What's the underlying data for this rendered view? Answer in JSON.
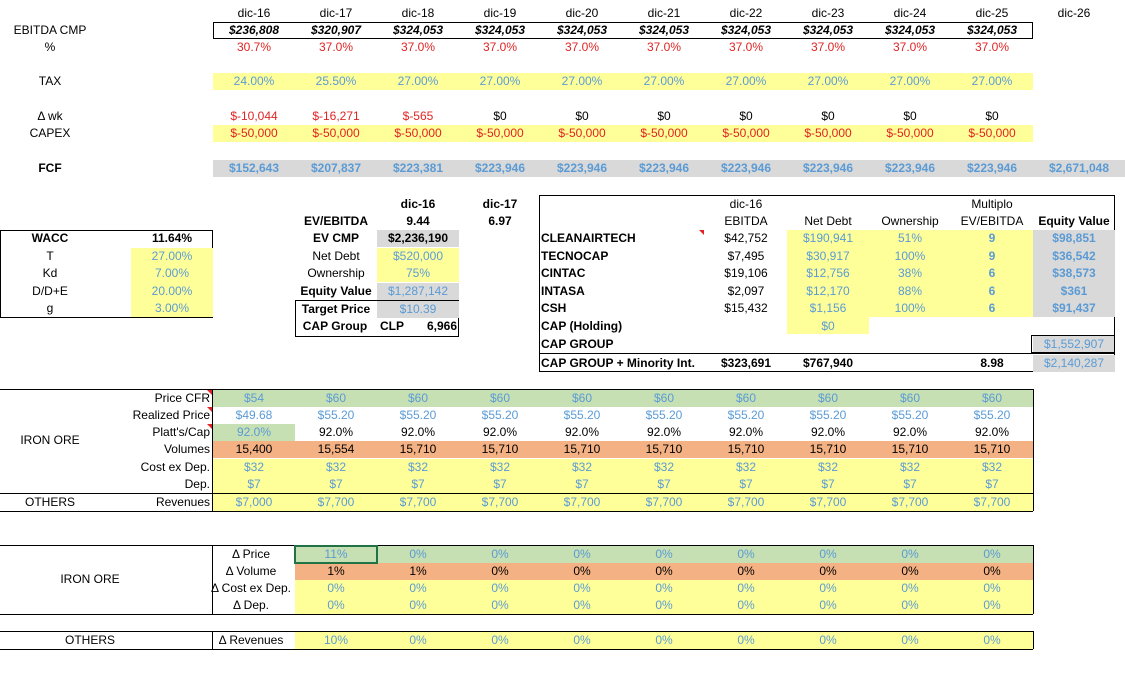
{
  "years": [
    "dic-16",
    "dic-17",
    "dic-18",
    "dic-19",
    "dic-20",
    "dic-21",
    "dic-22",
    "dic-23",
    "dic-24",
    "dic-25",
    "dic-26"
  ],
  "ebitda": {
    "label": "EBITDA CMP",
    "values": [
      "$236,808",
      "$320,907",
      "$324,053",
      "$324,053",
      "$324,053",
      "$324,053",
      "$324,053",
      "$324,053",
      "$324,053",
      "$324,053"
    ]
  },
  "margin": {
    "label": "%",
    "values": [
      "30.7%",
      "37.0%",
      "37.0%",
      "37.0%",
      "37.0%",
      "37.0%",
      "37.0%",
      "37.0%",
      "37.0%",
      "37.0%"
    ]
  },
  "tax": {
    "label": "TAX",
    "values": [
      "24.00%",
      "25.50%",
      "27.00%",
      "27.00%",
      "27.00%",
      "27.00%",
      "27.00%",
      "27.00%",
      "27.00%",
      "27.00%"
    ]
  },
  "wk": {
    "label": "Δ wk",
    "values": [
      "$-10,044",
      "$-16,271",
      "$-565",
      "$0",
      "$0",
      "$0",
      "$0",
      "$0",
      "$0",
      "$0"
    ]
  },
  "capex": {
    "label": "CAPEX",
    "values": [
      "$-50,000",
      "$-50,000",
      "$-50,000",
      "$-50,000",
      "$-50,000",
      "$-50,000",
      "$-50,000",
      "$-50,000",
      "$-50,000",
      "$-50,000"
    ]
  },
  "fcf": {
    "label": "FCF",
    "values": [
      "$152,643",
      "$207,837",
      "$223,381",
      "$223,946",
      "$223,946",
      "$223,946",
      "$223,946",
      "$223,946",
      "$223,946",
      "$223,946",
      "$2,671,048"
    ]
  },
  "wacc": {
    "rows": [
      {
        "label": "WACC",
        "value": "11.64%"
      },
      {
        "label": "T",
        "value": "27.00%"
      },
      {
        "label": "Kd",
        "value": "7.00%"
      },
      {
        "label": "D/D+E",
        "value": "20.00%"
      },
      {
        "label": "g",
        "value": "3.00%"
      }
    ]
  },
  "valuation": {
    "col1": "dic-16",
    "col2": "dic-17",
    "ev_ebitda": {
      "label": "EV/EBITDA",
      "v1": "9.44",
      "v2": "6.97"
    },
    "ev_cmp": {
      "label": "EV CMP",
      "value": "$2,236,190"
    },
    "net_debt": {
      "label": "Net Debt",
      "value": "$520,000"
    },
    "ownership": {
      "label": "Ownership",
      "value": "75%"
    },
    "equity": {
      "label": "Equity Value",
      "value": "$1,287,142"
    },
    "target": {
      "label": "Target Price",
      "value": "$10.39"
    },
    "cap_group": {
      "label": "CAP Group",
      "currency": "CLP",
      "value": "6,966"
    }
  },
  "subs": {
    "head_year": "dic-16",
    "head_multiplo": "Multiplo",
    "headers": [
      "EBITDA",
      "Net Debt",
      "Ownership",
      "EV/EBITDA",
      "Equity Value"
    ],
    "rows": [
      {
        "name": "CLEANAIRTECH",
        "ebitda": "$42,752",
        "debt": "$190,941",
        "own": "51%",
        "mult": "9",
        "eq": "$98,851"
      },
      {
        "name": "TECNOCAP",
        "ebitda": "$7,495",
        "debt": "$30,917",
        "own": "100%",
        "mult": "9",
        "eq": "$36,542"
      },
      {
        "name": "CINTAC",
        "ebitda": "$19,106",
        "debt": "$12,756",
        "own": "38%",
        "mult": "6",
        "eq": "$38,573"
      },
      {
        "name": "INTASA",
        "ebitda": "$2,097",
        "debt": "$12,170",
        "own": "88%",
        "mult": "6",
        "eq": "$361"
      },
      {
        "name": "CSH",
        "ebitda": "$15,432",
        "debt": "$1,156",
        "own": "100%",
        "mult": "6",
        "eq": "$91,437"
      }
    ],
    "holding": {
      "name": "CAP (Holding)",
      "debt": "$0"
    },
    "group": {
      "name": "CAP GROUP",
      "eq": "$1,552,907"
    },
    "total": {
      "name": "CAP GROUP + Minority Int.",
      "ebitda": "$323,691",
      "debt": "$767,940",
      "mult": "8.98",
      "eq": "$2,140,287"
    }
  },
  "ops": {
    "iron_label": "IRON ORE",
    "others_label": "OTHERS",
    "price_cfr": {
      "label": "Price CFR",
      "values": [
        "$54",
        "$60",
        "$60",
        "$60",
        "$60",
        "$60",
        "$60",
        "$60",
        "$60",
        "$60"
      ]
    },
    "realized": {
      "label": "Realized Price",
      "values": [
        "$49.68",
        "$55.20",
        "$55.20",
        "$55.20",
        "$55.20",
        "$55.20",
        "$55.20",
        "$55.20",
        "$55.20",
        "$55.20"
      ]
    },
    "platts": {
      "label": "Platt's/Cap",
      "values": [
        "92.0%",
        "92.0%",
        "92.0%",
        "92.0%",
        "92.0%",
        "92.0%",
        "92.0%",
        "92.0%",
        "92.0%",
        "92.0%"
      ]
    },
    "volumes": {
      "label": "Volumes",
      "values": [
        "15,400",
        "15,554",
        "15,710",
        "15,710",
        "15,710",
        "15,710",
        "15,710",
        "15,710",
        "15,710",
        "15,710"
      ]
    },
    "cost": {
      "label": "Cost ex Dep.",
      "values": [
        "$32",
        "$32",
        "$32",
        "$32",
        "$32",
        "$32",
        "$32",
        "$32",
        "$32",
        "$32"
      ]
    },
    "dep": {
      "label": "Dep.",
      "values": [
        "$7",
        "$7",
        "$7",
        "$7",
        "$7",
        "$7",
        "$7",
        "$7",
        "$7",
        "$7"
      ]
    },
    "revenues": {
      "label": "Revenues",
      "values": [
        "$7,000",
        "$7,700",
        "$7,700",
        "$7,700",
        "$7,700",
        "$7,700",
        "$7,700",
        "$7,700",
        "$7,700",
        "$7,700"
      ]
    }
  },
  "sens": {
    "iron_label": "IRON ORE",
    "others_label": "OTHERS",
    "price": {
      "label": "Δ Price",
      "values": [
        "11%",
        "0%",
        "0%",
        "0%",
        "0%",
        "0%",
        "0%",
        "0%",
        "0%"
      ]
    },
    "volume": {
      "label": "Δ Volume",
      "values": [
        "1%",
        "1%",
        "0%",
        "0%",
        "0%",
        "0%",
        "0%",
        "0%",
        "0%"
      ]
    },
    "cost": {
      "label": "Δ Cost ex Dep.",
      "values": [
        "0%",
        "0%",
        "0%",
        "0%",
        "0%",
        "0%",
        "0%",
        "0%",
        "0%"
      ]
    },
    "dep": {
      "label": "Δ Dep.",
      "values": [
        "0%",
        "0%",
        "0%",
        "0%",
        "0%",
        "0%",
        "0%",
        "0%",
        "0%"
      ]
    },
    "revenues": {
      "label": "Δ Revenues",
      "values": [
        "10%",
        "0%",
        "0%",
        "0%",
        "0%",
        "0%",
        "0%",
        "0%",
        "0%"
      ]
    }
  }
}
